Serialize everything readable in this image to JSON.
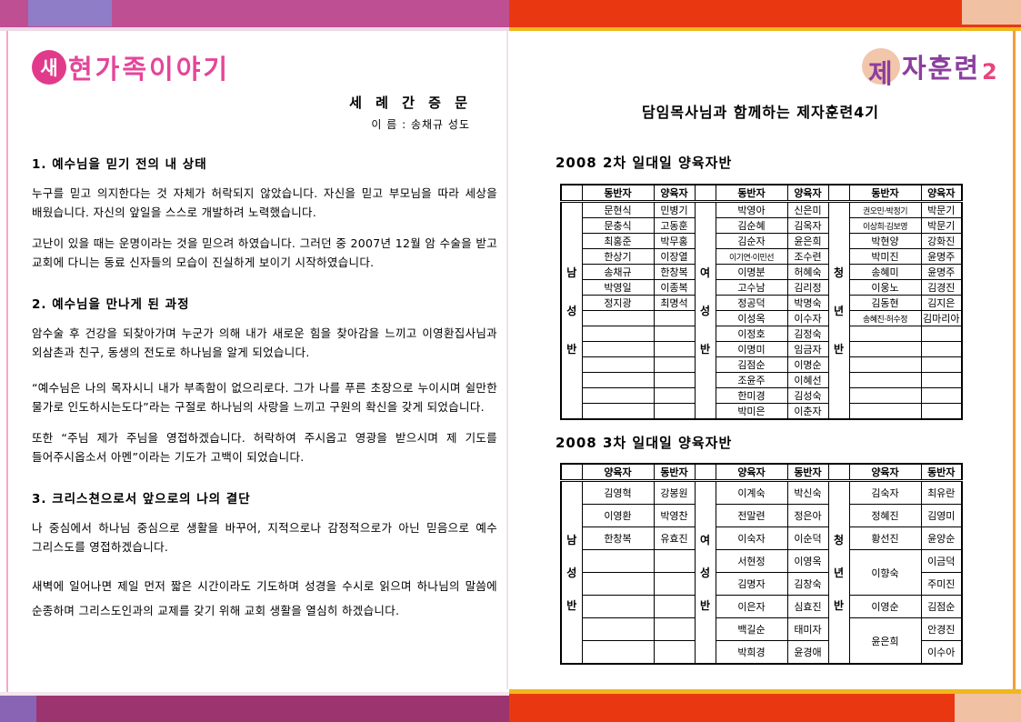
{
  "left_page": {
    "logo": {
      "circle_char": "새",
      "text": "현가족이야기"
    },
    "doc_title": "세 례 간 증 문",
    "name_line": "이 름 : 송채규 성도",
    "sections": [
      {
        "heading": "1. 예수님을 믿기 전의 내 상태",
        "paragraphs": [
          "누구를 믿고 의지한다는 것 자체가 허락되지 않았습니다. 자신을 믿고 부모님을 따라 세상을 배웠습니다. 자신의 앞일을 스스로 개발하려 노력했습니다.",
          "고난이 있을 때는 운명이라는 것을 믿으려 하였습니다. 그러던 중 2007년 12월 암 수술을 받고 교회에 다니는 동료 신자들의 모습이 진실하게 보이기 시작하였습니다."
        ]
      },
      {
        "heading": "2. 예수님을 만나게 된 과정",
        "paragraphs": [
          "암수술 후 건강을 되찾아가며 누군가 의해 내가 새로운 힘을 찾아감을 느끼고 이영환집사님과 외삼촌과 친구, 동생의 전도로 하나님을 알게 되었습니다.",
          "“예수님은 나의 목자시니 내가 부족함이 없으리로다. 그가 나를 푸른 초장으로 누이시며 쉴만한 물가로 인도하시는도다”라는 구절로 하나님의 사랑을 느끼고 구원의 확신을 갖게 되었습니다.",
          "또한 “주님 제가 주님을 영접하겠습니다. 허락하여 주시옵고 영광을 받으시며 제 기도를 들어주시옵소서 아멘”이라는 기도가 고백이 되었습니다."
        ]
      },
      {
        "heading": "3. 크리스쳔으로서 앞으로의 나의 결단",
        "paragraphs": [
          "나 중심에서 하나님 중심으로 생활을 바꾸어, 지적으로나 감정적으로가 아닌 믿음으로 예수 그리스도를 영접하겠습니다.",
          "새벽에 일어나면 제일 먼저 짧은 시간이라도 기도하며 성경을 수시로 읽으며 하나님의 말씀에 순종하며 그리스도인과의 교제를 갖기 위해 교회 생활을 열심히 하겠습니다."
        ]
      }
    ]
  },
  "right_page": {
    "logo": {
      "circle_char": "제",
      "rest": "자훈련",
      "number": "2"
    },
    "page_title": "담임목사님과 함께하는 제자훈련4기",
    "tables": [
      {
        "title": "2008 2차 일대일 양육자반",
        "row_count": 14,
        "groups": [
          {
            "label": [
              "남",
              "성",
              "반"
            ],
            "headers": [
              "동반자",
              "양육자"
            ],
            "rows": [
              [
                "문현식",
                "민병기"
              ],
              [
                "문충식",
                "고동훈"
              ],
              [
                "최홍준",
                "박무홍"
              ],
              [
                "한상기",
                "이장열"
              ],
              [
                "송채규",
                "한창복"
              ],
              [
                "박영일",
                "이종복"
              ],
              [
                "정지광",
                "최명석"
              ]
            ]
          },
          {
            "label": [
              "여",
              "성",
              "반"
            ],
            "headers": [
              "동반자",
              "양육자"
            ],
            "rows": [
              [
                "박영아",
                "신은미"
              ],
              [
                "김순혜",
                "김옥자"
              ],
              [
                "김순자",
                "윤은희"
              ],
              [
                "이기연·이민선",
                "조수련"
              ],
              [
                "이명분",
                "허혜숙"
              ],
              [
                "고수남",
                "김리정"
              ],
              [
                "정공덕",
                "박명숙"
              ],
              [
                "이성옥",
                "이수자"
              ],
              [
                "이정호",
                "김정숙"
              ],
              [
                "이명미",
                "임금자"
              ],
              [
                "김점순",
                "이명순"
              ],
              [
                "조윤주",
                "이혜선"
              ],
              [
                "한미경",
                "김성숙"
              ],
              [
                "박미은",
                "이춘자"
              ]
            ]
          },
          {
            "label": [
              "청",
              "년",
              "반"
            ],
            "headers": [
              "동반자",
              "양육자"
            ],
            "rows": [
              [
                "권오민·박정기",
                "박문기"
              ],
              [
                "이상희·김보영",
                "박문기"
              ],
              [
                "박현양",
                "강화진"
              ],
              [
                "박미진",
                "윤명주"
              ],
              [
                "송혜미",
                "윤명주"
              ],
              [
                "이웅노",
                "김경진"
              ],
              [
                "김동현",
                "김지은"
              ],
              [
                "송혜진·허수정",
                "김마리아"
              ]
            ]
          }
        ]
      },
      {
        "title": "2008 3차 일대일 양육자반",
        "row_count": 8,
        "groups": [
          {
            "label": [
              "남",
              "성",
              "반"
            ],
            "headers": [
              "양육자",
              "동반자"
            ],
            "rows": [
              [
                "김영혁",
                "강봉원"
              ],
              [
                "이영환",
                "박영찬"
              ],
              [
                "한창복",
                "유효진"
              ]
            ]
          },
          {
            "label": [
              "여",
              "성",
              "반"
            ],
            "headers": [
              "양육자",
              "동반자"
            ],
            "rows": [
              [
                "이계숙",
                "박신숙"
              ],
              [
                "전말련",
                "정은아"
              ],
              [
                "이숙자",
                "이순덕"
              ],
              [
                "서현정",
                "이영옥"
              ],
              [
                "김명자",
                "김창숙"
              ],
              [
                "이은자",
                "심효진"
              ],
              [
                "백길순",
                "태미자"
              ],
              [
                "박희경",
                "윤경애"
              ]
            ]
          },
          {
            "label": [
              "청",
              "년",
              "반"
            ],
            "headers": [
              "양육자",
              "동반자"
            ],
            "rows": [
              [
                "김숙자",
                "최유란"
              ],
              [
                "정혜진",
                "김영미"
              ],
              [
                "황선진",
                "윤양순"
              ],
              [
                {
                  "t": "이향숙",
                  "rs": 2
                },
                "이금덕"
              ],
              [
                null,
                "주미진"
              ],
              [
                "이영순",
                "김점순"
              ],
              [
                {
                  "t": "윤은희",
                  "rs": 2
                },
                "안경진"
              ],
              [
                null,
                "이수아"
              ]
            ]
          }
        ]
      }
    ]
  },
  "colors": {
    "magenta_strip": "#bf4f93",
    "plum_strip": "#9c3470",
    "lavender_block": "#8f7dc8",
    "purple_block": "#8a64b4",
    "red_strip": "#e93811",
    "peach_block": "#f1c1a4",
    "gold_line": "#f0b71c",
    "pink_logo": "#e23a8a",
    "purple_logo": "#8b3f9e",
    "pink_number": "#e8457c"
  }
}
